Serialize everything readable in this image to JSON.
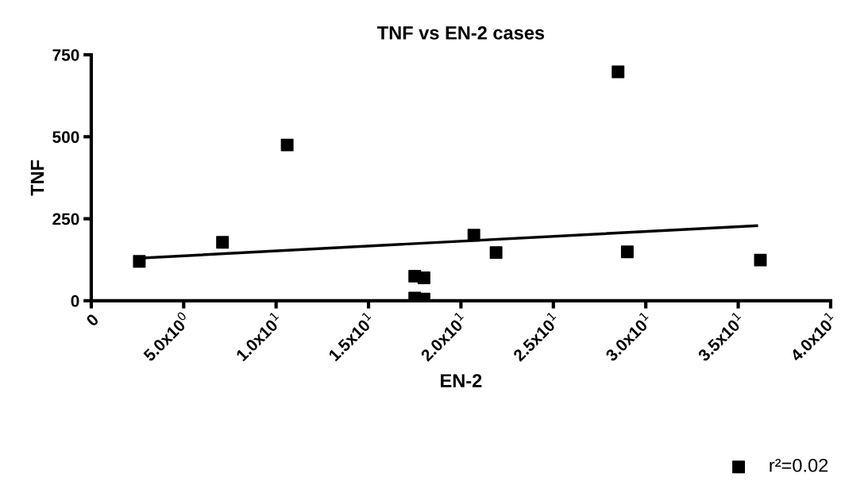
{
  "chart_data": {
    "type": "scatter",
    "title": "TNF vs EN-2 cases",
    "xlabel": "EN-2",
    "ylabel": "TNF",
    "xlim": [
      0,
      40
    ],
    "xticks": [
      0,
      {
        "value": 5,
        "label": "5.0x10$^{0}$"
      },
      {
        "value": 10,
        "label": "1.0x10$^{1}$"
      },
      {
        "value": 15,
        "label": "1.5x10$^{1}$"
      },
      {
        "value": 20,
        "label": "2.0x10$^{1}$"
      },
      {
        "value": 25,
        "label": "2.5x10$^{1}$"
      },
      {
        "value": 30,
        "label": "3.0x10$^{1}$"
      },
      {
        "value": 35,
        "label": "3.5x10$^{1}$"
      },
      {
        "value": 40,
        "label": "4.0x10$^{1}$"
      }
    ],
    "ylim": [
      0,
      750
    ],
    "yticks": [
      0,
      250,
      500,
      750
    ],
    "grid": false,
    "legend": "bottom right",
    "marker": "square",
    "series": [
      {
        "name": "r²=0.02",
        "color": "#000000",
        "x": [
          2.6,
          7.1,
          10.6,
          17.5,
          18.0,
          17.5,
          18.0,
          20.7,
          21.9,
          28.5,
          29.0,
          36.2
        ],
        "values": [
          120,
          178,
          475,
          75,
          70,
          8,
          5,
          200,
          147,
          698,
          149,
          124
        ]
      },
      {
        "type": "line",
        "color": "#000000",
        "x": [
          2.6,
          36.0
        ],
        "values": [
          130,
          229
        ],
        "line_style": "solid",
        "marker": "none"
      }
    ]
  }
}
